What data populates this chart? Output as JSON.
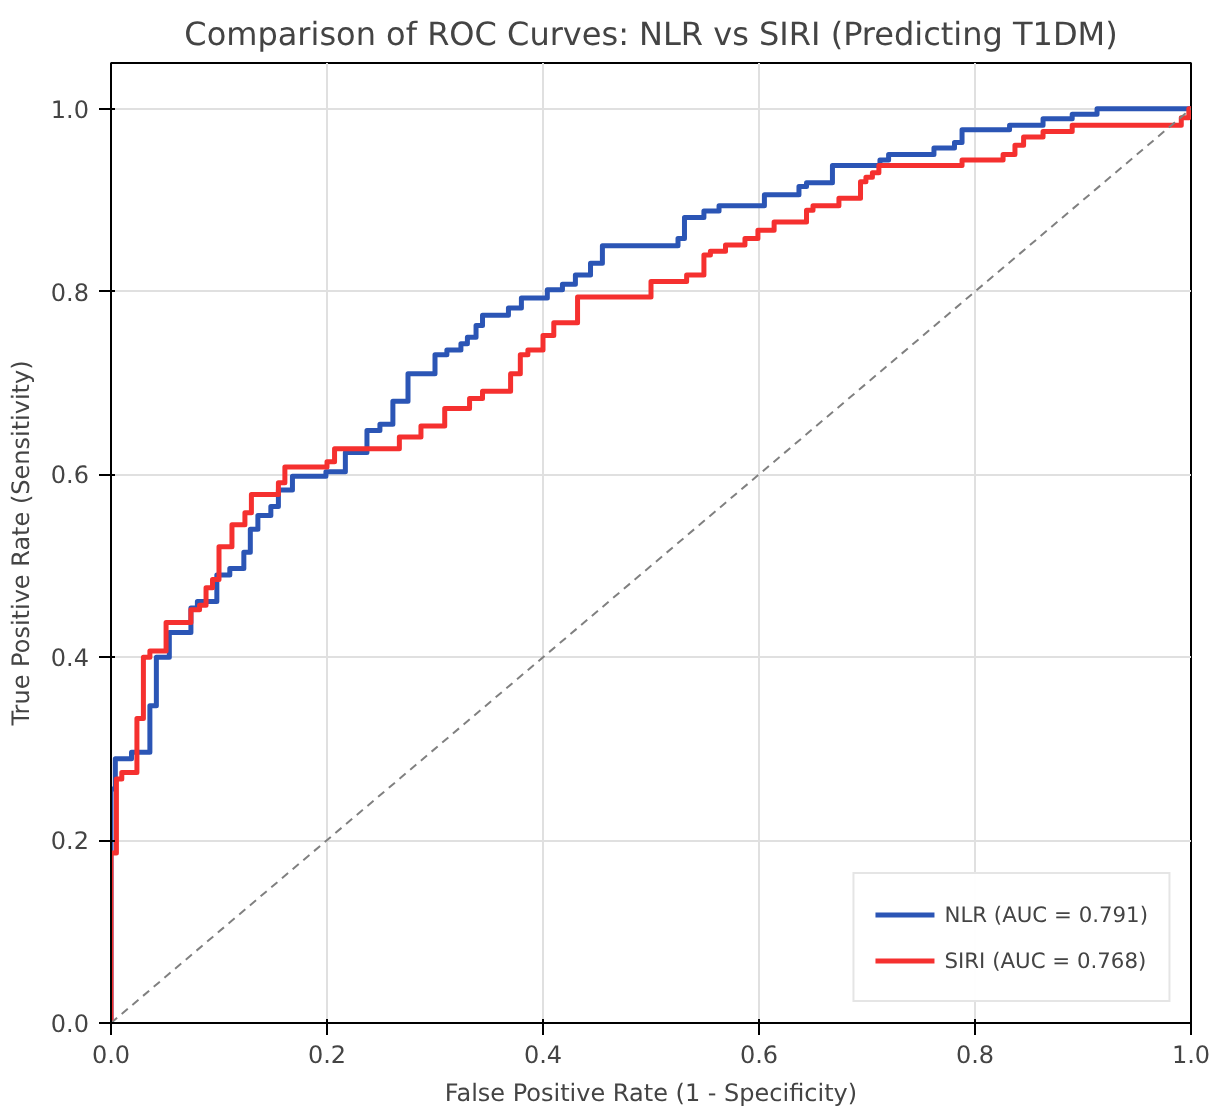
{
  "chart_data": {
    "type": "step",
    "title": "Comparison of ROC Curves: NLR vs SIRI (Predicting T1DM)",
    "xlabel": "False Positive Rate (1 - Specificity)",
    "ylabel": "True Positive Rate (Sensitivity)",
    "xlim": [
      0,
      1
    ],
    "ylim": [
      0,
      1.05
    ],
    "xticks": [
      {
        "value": 0,
        "label": "0.0"
      },
      0.2,
      0.4,
      0.6,
      0.8,
      {
        "value": 1,
        "label": "1.0"
      }
    ],
    "yticks": [
      {
        "value": 0,
        "label": "0.0"
      },
      0.2,
      0.4,
      0.6,
      0.8,
      {
        "value": 1,
        "label": "1.0"
      }
    ],
    "grid": true,
    "legend": "bottom right",
    "series": [
      {
        "name": "NLR (AUC = 0.791)",
        "color": "#2b55b5",
        "x": [
          0,
          0,
          0.004,
          0.019,
          0.036,
          0.042,
          0.054,
          0.074,
          0.08,
          0.098,
          0.11,
          0.123,
          0.129,
          0.136,
          0.148,
          0.155,
          0.168,
          0.199,
          0.217,
          0.237,
          0.249,
          0.261,
          0.275,
          0.3,
          0.311,
          0.324,
          0.33,
          0.338,
          0.344,
          0.368,
          0.38,
          0.404,
          0.418,
          0.43,
          0.444,
          0.455,
          0.525,
          0.531,
          0.549,
          0.563,
          0.605,
          0.637,
          0.644,
          0.668,
          0.712,
          0.72,
          0.762,
          0.781,
          0.788,
          0.832,
          0.863,
          0.89,
          0.913,
          1
        ],
        "values": [
          0,
          0.256,
          0.289,
          0.296,
          0.347,
          0.4,
          0.427,
          0.454,
          0.461,
          0.49,
          0.497,
          0.515,
          0.54,
          0.555,
          0.565,
          0.583,
          0.598,
          0.603,
          0.624,
          0.648,
          0.655,
          0.68,
          0.71,
          0.731,
          0.736,
          0.743,
          0.75,
          0.763,
          0.774,
          0.782,
          0.793,
          0.802,
          0.808,
          0.818,
          0.831,
          0.85,
          0.858,
          0.881,
          0.888,
          0.894,
          0.906,
          0.915,
          0.919,
          0.938,
          0.944,
          0.95,
          0.957,
          0.963,
          0.977,
          0.982,
          0.989,
          0.994,
          1.0,
          1.0
        ]
      },
      {
        "name": "SIRI (AUC = 0.768)",
        "color": "#f5302f",
        "x": [
          0,
          0,
          0.005,
          0.01,
          0.024,
          0.03,
          0.036,
          0.051,
          0.074,
          0.082,
          0.088,
          0.094,
          0.1,
          0.112,
          0.124,
          0.13,
          0.155,
          0.161,
          0.2,
          0.207,
          0.267,
          0.287,
          0.309,
          0.332,
          0.344,
          0.37,
          0.379,
          0.386,
          0.4,
          0.41,
          0.432,
          0.5,
          0.533,
          0.549,
          0.555,
          0.569,
          0.587,
          0.599,
          0.614,
          0.644,
          0.65,
          0.674,
          0.694,
          0.699,
          0.705,
          0.711,
          0.788,
          0.826,
          0.837,
          0.845,
          0.863,
          0.89,
          0.991,
          0.998,
          1
        ],
        "values": [
          0,
          0.186,
          0.267,
          0.274,
          0.333,
          0.4,
          0.407,
          0.438,
          0.452,
          0.457,
          0.476,
          0.485,
          0.521,
          0.545,
          0.558,
          0.578,
          0.591,
          0.608,
          0.614,
          0.628,
          0.641,
          0.653,
          0.672,
          0.683,
          0.691,
          0.71,
          0.731,
          0.736,
          0.752,
          0.766,
          0.794,
          0.811,
          0.818,
          0.84,
          0.844,
          0.851,
          0.858,
          0.867,
          0.876,
          0.889,
          0.894,
          0.902,
          0.92,
          0.925,
          0.93,
          0.938,
          0.944,
          0.95,
          0.96,
          0.969,
          0.975,
          0.982,
          0.99,
          1.0,
          1.0
        ]
      },
      {
        "type": "line",
        "color": "#808080",
        "line_style": "dashed",
        "x": [
          0,
          1
        ],
        "values": [
          0,
          1
        ]
      }
    ]
  }
}
